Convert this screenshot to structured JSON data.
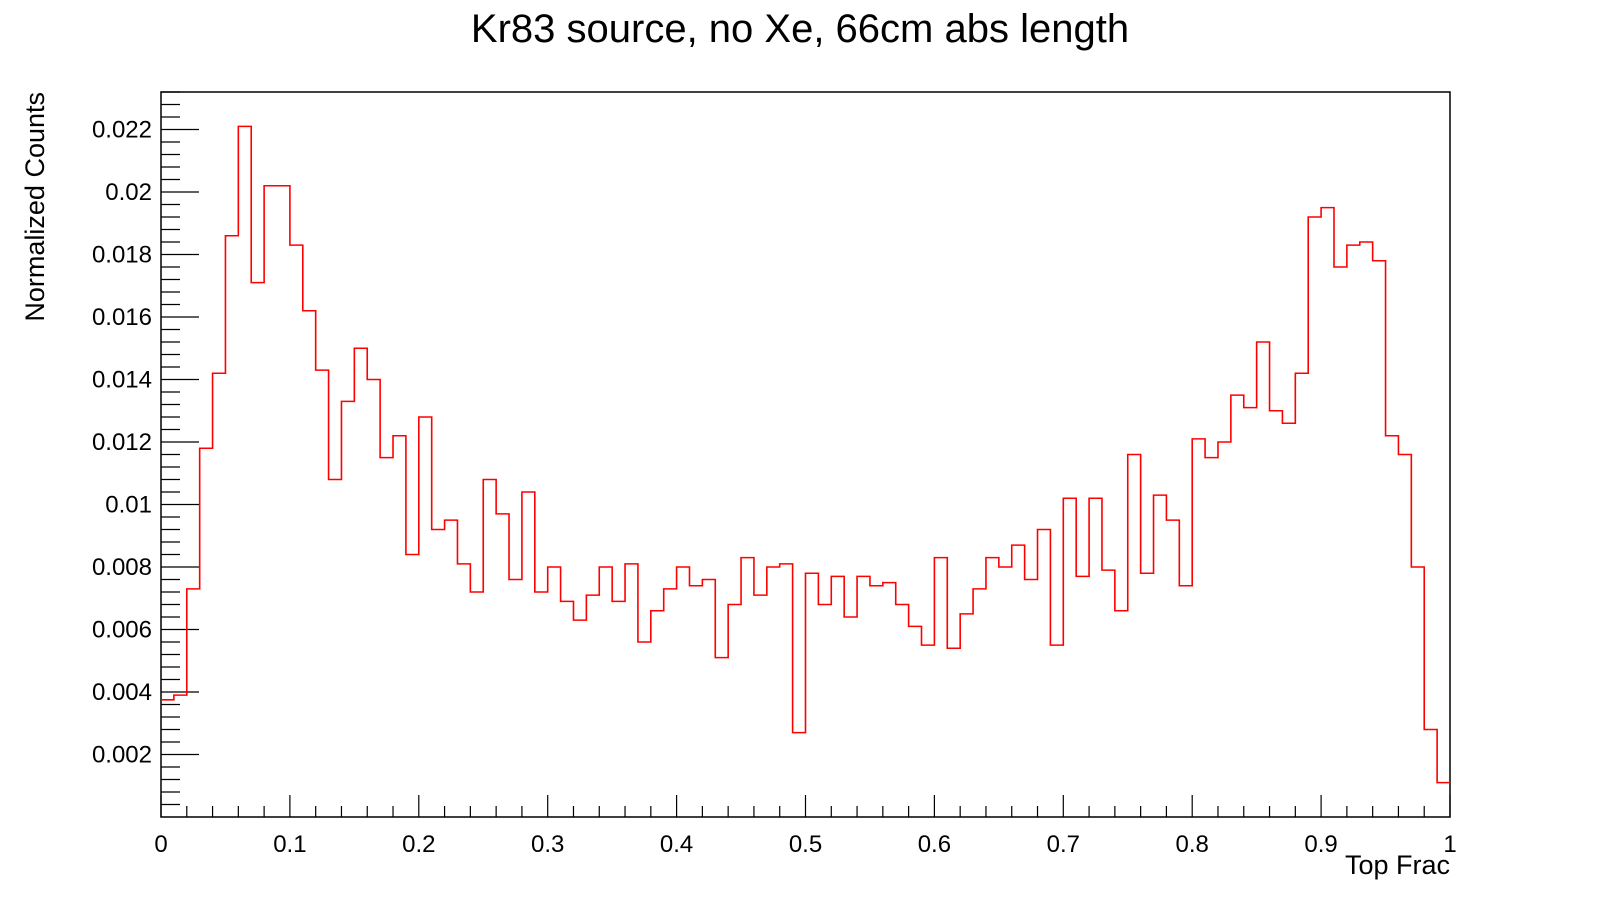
{
  "chart_data": {
    "type": "histogram-step",
    "title": "Kr83 source, no Xe, 66cm abs length",
    "xlabel": "Top Frac",
    "ylabel": "Normalized Counts",
    "xlim": [
      0,
      1
    ],
    "ylim": [
      0,
      0.0232
    ],
    "x_ticks": [
      0,
      0.1,
      0.2,
      0.3,
      0.4,
      0.5,
      0.6,
      0.7,
      0.8,
      0.9,
      1
    ],
    "x_tick_labels": [
      "0",
      "0.1",
      "0.2",
      "0.3",
      "0.4",
      "0.5",
      "0.6",
      "0.7",
      "0.8",
      "0.9",
      "1"
    ],
    "y_ticks": [
      0.002,
      0.004,
      0.006,
      0.008,
      0.01,
      0.012,
      0.014,
      0.016,
      0.018,
      0.02,
      0.022
    ],
    "y_tick_labels": [
      "0.002",
      "0.004",
      "0.006",
      "0.008",
      "0.01",
      "0.012",
      "0.014",
      "0.016",
      "0.018",
      "0.02",
      "0.022"
    ],
    "grid": false,
    "legend": false,
    "line_color": "#ff0000",
    "bin_width": 0.01,
    "bin_start": 0,
    "values": [
      0.00375,
      0.0039,
      0.0073,
      0.0118,
      0.0142,
      0.0186,
      0.0221,
      0.0171,
      0.0202,
      0.0202,
      0.0183,
      0.0162,
      0.0143,
      0.0108,
      0.0133,
      0.015,
      0.014,
      0.0115,
      0.0122,
      0.0084,
      0.0128,
      0.0092,
      0.0095,
      0.0081,
      0.0072,
      0.0108,
      0.0097,
      0.0076,
      0.0104,
      0.0072,
      0.008,
      0.0069,
      0.0063,
      0.0071,
      0.008,
      0.0069,
      0.0081,
      0.0056,
      0.0066,
      0.0073,
      0.008,
      0.0074,
      0.0076,
      0.0051,
      0.0068,
      0.0083,
      0.0071,
      0.008,
      0.0081,
      0.0027,
      0.0078,
      0.0068,
      0.0077,
      0.0064,
      0.0077,
      0.0074,
      0.0075,
      0.0068,
      0.0061,
      0.0055,
      0.0083,
      0.0054,
      0.0065,
      0.0073,
      0.0083,
      0.008,
      0.0087,
      0.0076,
      0.0092,
      0.0055,
      0.0102,
      0.0077,
      0.0102,
      0.0079,
      0.0066,
      0.0116,
      0.0078,
      0.0103,
      0.0095,
      0.0074,
      0.0121,
      0.0115,
      0.012,
      0.0135,
      0.0131,
      0.0152,
      0.013,
      0.0126,
      0.0142,
      0.0192,
      0.0195,
      0.0176,
      0.0183,
      0.0184,
      0.0178,
      0.0122,
      0.0116,
      0.008,
      0.0028,
      0.0011
    ]
  }
}
